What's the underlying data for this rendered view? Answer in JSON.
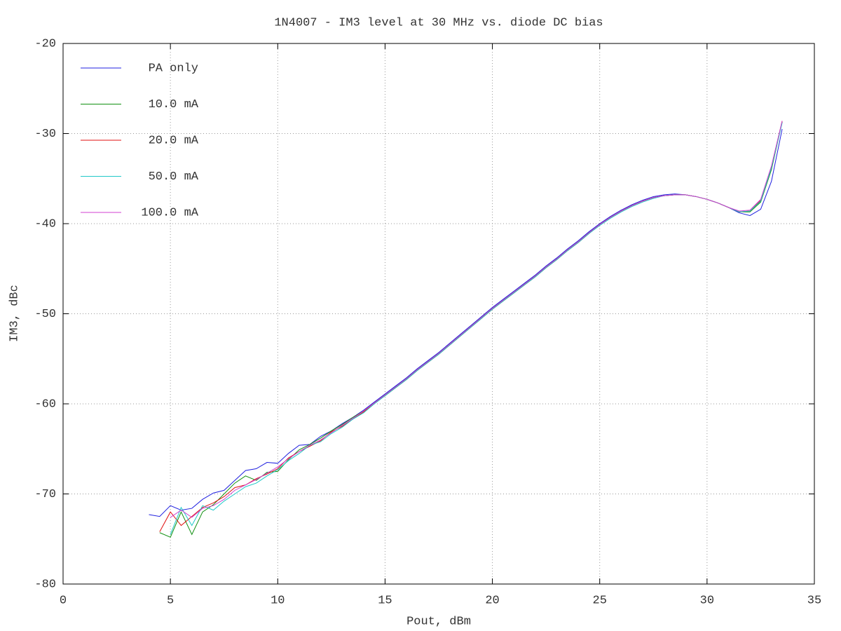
{
  "chart_data": {
    "type": "line",
    "title": "1N4007 - IM3 level at 30 MHz vs. diode DC bias",
    "x_label": "Pout, dBm",
    "y_label": "IM3, dBc",
    "xlim": [
      0,
      35
    ],
    "xticks": [
      0,
      5,
      10,
      15,
      20,
      25,
      30,
      35
    ],
    "ylim": [
      -80,
      -20
    ],
    "yticks": [
      -80,
      -70,
      -60,
      -50,
      -40,
      -30,
      -20
    ],
    "grid": true,
    "legend": "top-left",
    "x": [
      4,
      4.5,
      5,
      5.5,
      6,
      6.5,
      7,
      7.5,
      8,
      8.5,
      9,
      9.5,
      10,
      10.5,
      11,
      11.5,
      12,
      12.5,
      13,
      13.5,
      14,
      14.5,
      15,
      15.5,
      16,
      16.5,
      17,
      17.5,
      18,
      18.5,
      19,
      19.5,
      20,
      20.5,
      21,
      21.5,
      22,
      22.5,
      23,
      23.5,
      24,
      24.5,
      25,
      25.5,
      26,
      26.5,
      27,
      27.5,
      28,
      28.5,
      29,
      29.5,
      30,
      30.5,
      31,
      31.5,
      32,
      32.5,
      33,
      33.5
    ],
    "series": [
      {
        "name": "PA only",
        "color": "#2020e0",
        "values": [
          -72.3,
          -72.5,
          -71.3,
          -71.8,
          -71.6,
          -70.6,
          -69.9,
          -69.6,
          -68.5,
          -67.4,
          -67.2,
          -66.5,
          -66.6,
          -65.5,
          -64.6,
          -64.5,
          -63.6,
          -63.0,
          -62.2,
          -61.5,
          -60.7,
          -59.8,
          -58.9,
          -58.0,
          -57.1,
          -56.1,
          -55.2,
          -54.3,
          -53.3,
          -52.3,
          -51.3,
          -50.3,
          -49.3,
          -48.4,
          -47.5,
          -46.6,
          -45.7,
          -44.7,
          -43.8,
          -42.8,
          -41.9,
          -40.9,
          -40.0,
          -39.2,
          -38.5,
          -37.9,
          -37.4,
          -37.0,
          -36.8,
          -36.7,
          -36.8,
          -37.0,
          -37.3,
          -37.7,
          -38.2,
          -38.8,
          -39.1,
          -38.4,
          -35.3,
          -29.5
        ]
      },
      {
        "name": "10.0 mA",
        "color": "#109010",
        "values": [
          null,
          -74.3,
          -74.8,
          -72.0,
          -74.5,
          -72.0,
          -71.2,
          -70.0,
          -68.8,
          -68.0,
          -68.5,
          -67.6,
          -67.5,
          -66.2,
          -65.1,
          -64.5,
          -63.8,
          -63.0,
          -62.3,
          -61.5,
          -60.8,
          -59.9,
          -59.0,
          -58.1,
          -57.2,
          -56.2,
          -55.3,
          -54.4,
          -53.4,
          -52.4,
          -51.4,
          -50.4,
          -49.4,
          -48.5,
          -47.6,
          -46.7,
          -45.8,
          -44.8,
          -43.9,
          -42.9,
          -42.0,
          -41.0,
          -40.1,
          -39.3,
          -38.6,
          -38.0,
          -37.5,
          -37.1,
          -36.9,
          -36.8,
          -36.8,
          -37.0,
          -37.3,
          -37.7,
          -38.2,
          -38.7,
          -38.7,
          -37.6,
          -34.0,
          -28.7
        ]
      },
      {
        "name": "20.0 mA",
        "color": "#e01010",
        "values": [
          null,
          -74.2,
          -72.0,
          -73.5,
          -72.5,
          -71.5,
          -71.0,
          -70.3,
          -69.3,
          -69.0,
          -68.3,
          -67.8,
          -67.2,
          -66.0,
          -65.3,
          -64.7,
          -64.1,
          -63.1,
          -62.5,
          -61.7,
          -60.9,
          -59.9,
          -59.1,
          -58.2,
          -57.3,
          -56.3,
          -55.4,
          -54.5,
          -53.5,
          -52.5,
          -51.5,
          -50.5,
          -49.5,
          -48.6,
          -47.7,
          -46.8,
          -45.9,
          -44.9,
          -44.0,
          -43.0,
          -42.1,
          -41.1,
          -40.1,
          -39.3,
          -38.6,
          -38.0,
          -37.5,
          -37.1,
          -36.9,
          -36.8,
          -36.8,
          -37.0,
          -37.3,
          -37.7,
          -38.2,
          -38.7,
          -38.6,
          -37.4,
          -33.7,
          -28.6
        ]
      },
      {
        "name": "50.0 mA",
        "color": "#20c8c8",
        "values": [
          null,
          null,
          -74.5,
          -71.5,
          -73.5,
          -71.3,
          -71.8,
          -70.8,
          -70.0,
          -69.2,
          -68.8,
          -68.0,
          -67.3,
          -66.3,
          -65.5,
          -64.6,
          -64.2,
          -63.3,
          -62.6,
          -61.7,
          -61.0,
          -60.0,
          -59.1,
          -58.2,
          -57.3,
          -56.3,
          -55.4,
          -54.5,
          -53.5,
          -52.5,
          -51.5,
          -50.5,
          -49.5,
          -48.6,
          -47.7,
          -46.8,
          -45.9,
          -44.9,
          -44.0,
          -43.0,
          -42.1,
          -41.1,
          -40.2,
          -39.4,
          -38.7,
          -38.1,
          -37.6,
          -37.2,
          -36.9,
          -36.8,
          -36.8,
          -37.0,
          -37.3,
          -37.7,
          -38.2,
          -38.7,
          -38.6,
          -37.5,
          -33.8,
          -28.8
        ]
      },
      {
        "name": "100.0 mA",
        "color": "#d040d0",
        "values": [
          null,
          null,
          -72.6,
          -71.8,
          -72.6,
          -71.6,
          -71.3,
          -70.6,
          -69.6,
          -69.0,
          -68.4,
          -67.7,
          -67.0,
          -66.1,
          -65.3,
          -64.6,
          -64.0,
          -63.2,
          -62.4,
          -61.6,
          -60.8,
          -59.9,
          -59.0,
          -58.1,
          -57.2,
          -56.2,
          -55.3,
          -54.4,
          -53.4,
          -52.4,
          -51.4,
          -50.4,
          -49.4,
          -48.5,
          -47.6,
          -46.7,
          -45.8,
          -44.8,
          -43.9,
          -42.9,
          -42.0,
          -41.0,
          -40.1,
          -39.3,
          -38.6,
          -38.0,
          -37.5,
          -37.1,
          -36.9,
          -36.8,
          -36.8,
          -37.0,
          -37.3,
          -37.7,
          -38.2,
          -38.6,
          -38.5,
          -37.3,
          -33.6,
          -28.6
        ]
      }
    ]
  }
}
